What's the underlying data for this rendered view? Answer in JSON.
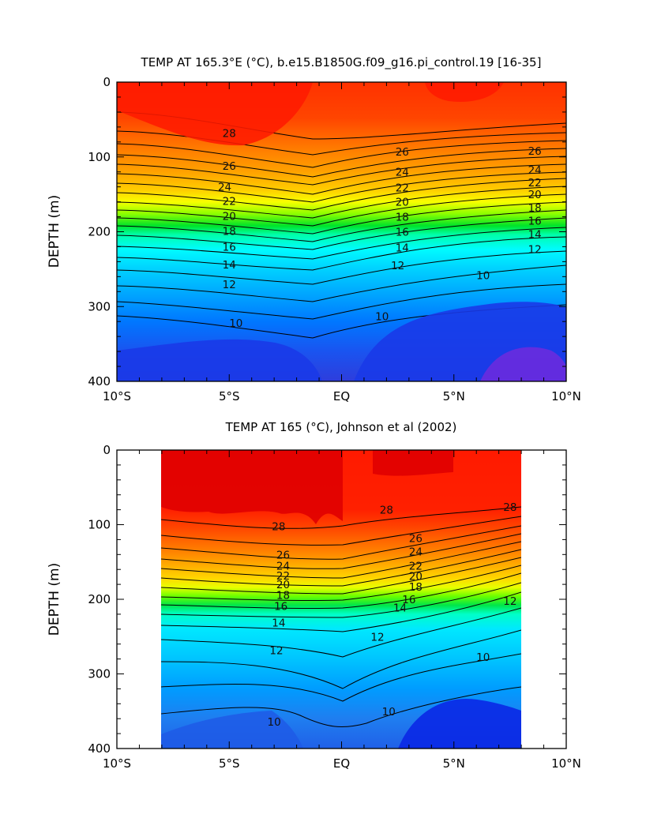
{
  "chart_data": [
    {
      "type": "heatmap",
      "title": "TEMP AT 165.3°E (°C), b.e15.B1850G.f09_g16.pi_control.19 [16-35]",
      "ylabel": "DEPTH (m)",
      "x_ticks": [
        "10°S",
        "5°S",
        "EQ",
        "5°N",
        "10°N"
      ],
      "y_ticks": [
        "0",
        "100",
        "200",
        "300",
        "400"
      ],
      "xlim": [
        -10,
        10
      ],
      "ylim": [
        400,
        0
      ],
      "y_inverted": true,
      "data_extent_lat": [
        -10,
        10
      ],
      "colormap": "rainbow",
      "contour_interval": 1,
      "temperature_by_depth": {
        "depth_m": [
          0,
          25,
          50,
          75,
          100,
          125,
          150,
          175,
          200,
          225,
          250,
          275,
          300,
          325,
          350,
          375,
          400
        ],
        "lat_5S": [
          29.6,
          29.5,
          29.0,
          28.0,
          26.4,
          24.6,
          22.8,
          20.7,
          18.6,
          16.5,
          14.6,
          13.0,
          11.8,
          10.8,
          9.9,
          9.1,
          8.4
        ],
        "lat_EQ": [
          29.1,
          29.0,
          28.6,
          27.2,
          25.4,
          23.6,
          21.6,
          19.2,
          16.9,
          14.8,
          13.2,
          12.1,
          11.2,
          10.4,
          9.5,
          8.7,
          8.0
        ],
        "lat_5N": [
          29.4,
          29.3,
          28.7,
          27.5,
          25.6,
          23.1,
          20.6,
          18.2,
          15.8,
          13.6,
          11.9,
          10.4,
          9.3,
          8.6,
          8.0,
          7.6,
          7.2
        ]
      },
      "contour_labels": [
        {
          "lat": -5.0,
          "depth": 68,
          "text": "28"
        },
        {
          "lat": -5.0,
          "depth": 112,
          "text": "26"
        },
        {
          "lat": -5.2,
          "depth": 140,
          "text": "24"
        },
        {
          "lat": -5.0,
          "depth": 159,
          "text": "22"
        },
        {
          "lat": -5.0,
          "depth": 179,
          "text": "20"
        },
        {
          "lat": -5.0,
          "depth": 199,
          "text": "18"
        },
        {
          "lat": -5.0,
          "depth": 220,
          "text": "16"
        },
        {
          "lat": -5.0,
          "depth": 244,
          "text": "14"
        },
        {
          "lat": -5.0,
          "depth": 270,
          "text": "12"
        },
        {
          "lat": -4.7,
          "depth": 322,
          "text": "10"
        },
        {
          "lat": 2.7,
          "depth": 93,
          "text": "26"
        },
        {
          "lat": 2.7,
          "depth": 120,
          "text": "24"
        },
        {
          "lat": 2.7,
          "depth": 141,
          "text": "22"
        },
        {
          "lat": 2.7,
          "depth": 160,
          "text": "20"
        },
        {
          "lat": 2.7,
          "depth": 180,
          "text": "18"
        },
        {
          "lat": 2.7,
          "depth": 200,
          "text": "16"
        },
        {
          "lat": 2.7,
          "depth": 221,
          "text": "14"
        },
        {
          "lat": 2.5,
          "depth": 245,
          "text": "12"
        },
        {
          "lat": 1.8,
          "depth": 313,
          "text": "10"
        },
        {
          "lat": 8.6,
          "depth": 92,
          "text": "26"
        },
        {
          "lat": 8.6,
          "depth": 117,
          "text": "24"
        },
        {
          "lat": 8.6,
          "depth": 134,
          "text": "22"
        },
        {
          "lat": 8.6,
          "depth": 150,
          "text": "20"
        },
        {
          "lat": 8.6,
          "depth": 168,
          "text": "18"
        },
        {
          "lat": 8.6,
          "depth": 185,
          "text": "16"
        },
        {
          "lat": 8.6,
          "depth": 203,
          "text": "14"
        },
        {
          "lat": 8.6,
          "depth": 223,
          "text": "12"
        },
        {
          "lat": 6.3,
          "depth": 258,
          "text": "10"
        }
      ]
    },
    {
      "type": "heatmap",
      "title": "TEMP AT 165 (°C), Johnson et al (2002)",
      "ylabel": "DEPTH (m)",
      "x_ticks": [
        "10°S",
        "5°S",
        "EQ",
        "5°N",
        "10°N"
      ],
      "y_ticks": [
        "0",
        "100",
        "200",
        "300",
        "400"
      ],
      "xlim": [
        -10,
        10
      ],
      "ylim": [
        400,
        0
      ],
      "y_inverted": true,
      "data_extent_lat": [
        -8,
        8
      ],
      "data_extent_depth": [
        0,
        400
      ],
      "colormap": "rainbow",
      "contour_interval": 1,
      "temperature_by_depth": {
        "depth_m": [
          0,
          25,
          50,
          75,
          100,
          125,
          150,
          175,
          200,
          225,
          250,
          275,
          300,
          325,
          350,
          375,
          400
        ],
        "lat_5S": [
          30.0,
          30.0,
          29.8,
          29.1,
          28.4,
          27.0,
          24.6,
          21.3,
          17.7,
          15.0,
          13.2,
          12.2,
          11.4,
          10.8,
          10.2,
          9.7,
          9.3
        ],
        "lat_EQ": [
          30.1,
          30.1,
          29.8,
          29.2,
          28.6,
          27.5,
          25.0,
          20.9,
          16.5,
          13.9,
          12.4,
          11.7,
          11.2,
          10.6,
          10.1,
          9.6,
          9.1
        ],
        "lat_5N": [
          29.9,
          29.8,
          29.3,
          28.7,
          27.9,
          26.2,
          23.4,
          19.5,
          15.6,
          13.0,
          11.4,
          10.3,
          9.6,
          9.2,
          8.8,
          8.5,
          8.2
        ]
      },
      "contour_labels": [
        {
          "lat": -2.8,
          "depth": 102,
          "text": "28"
        },
        {
          "lat": -2.6,
          "depth": 140,
          "text": "26"
        },
        {
          "lat": -2.6,
          "depth": 155,
          "text": "24"
        },
        {
          "lat": -2.6,
          "depth": 168,
          "text": "22"
        },
        {
          "lat": -2.6,
          "depth": 180,
          "text": "20"
        },
        {
          "lat": -2.6,
          "depth": 194,
          "text": "18"
        },
        {
          "lat": -2.7,
          "depth": 209,
          "text": "16"
        },
        {
          "lat": -2.8,
          "depth": 231,
          "text": "14"
        },
        {
          "lat": -2.9,
          "depth": 268,
          "text": "12"
        },
        {
          "lat": -3.0,
          "depth": 364,
          "text": "10"
        },
        {
          "lat": 2.0,
          "depth": 80,
          "text": "28"
        },
        {
          "lat": 3.3,
          "depth": 118,
          "text": "26"
        },
        {
          "lat": 3.3,
          "depth": 136,
          "text": "24"
        },
        {
          "lat": 3.3,
          "depth": 155,
          "text": "22"
        },
        {
          "lat": 3.3,
          "depth": 169,
          "text": "20"
        },
        {
          "lat": 3.3,
          "depth": 183,
          "text": "18"
        },
        {
          "lat": 3.0,
          "depth": 200,
          "text": "16"
        },
        {
          "lat": 2.6,
          "depth": 211,
          "text": "14"
        },
        {
          "lat": 1.6,
          "depth": 250,
          "text": "12"
        },
        {
          "lat": 2.1,
          "depth": 350,
          "text": "10"
        },
        {
          "lat": 7.5,
          "depth": 76,
          "text": "28"
        },
        {
          "lat": 7.5,
          "depth": 202,
          "text": "12"
        },
        {
          "lat": 6.3,
          "depth": 277,
          "text": "10"
        }
      ]
    }
  ]
}
